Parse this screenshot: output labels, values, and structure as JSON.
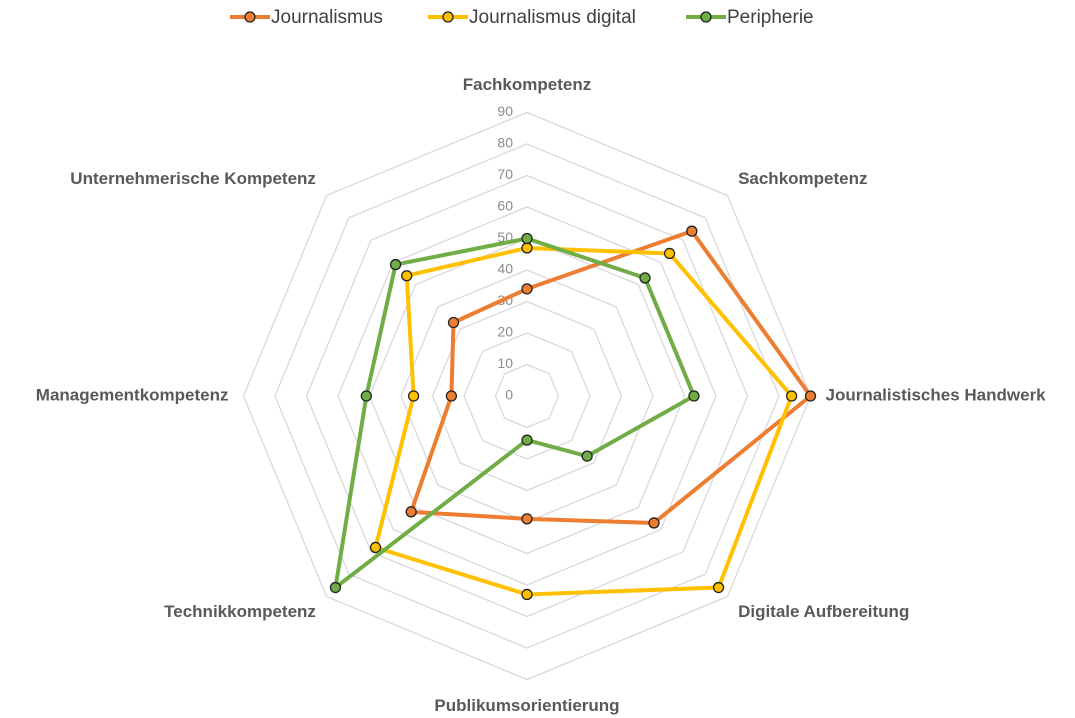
{
  "chart_data": {
    "type": "radar",
    "categories": [
      "Fachkompetenz",
      "Sachkompetenz",
      "Journalistisches Handwerk",
      "Digitale Aufbereitung",
      "Publikumsorientierung",
      "Technikkompetenz",
      "Managementkompetenz",
      "Unternehmerische Kompetenz"
    ],
    "series": [
      {
        "name": "Journalismus",
        "color": "#ED7D31",
        "values": [
          34,
          74,
          90,
          57,
          39,
          52,
          24,
          33
        ]
      },
      {
        "name": "Journalismus digital",
        "color": "#FFC000",
        "values": [
          47,
          64,
          84,
          86,
          63,
          68,
          36,
          54
        ]
      },
      {
        "name": "Peripherie",
        "color": "#70AD47",
        "values": [
          50,
          53,
          53,
          27,
          14,
          86,
          51,
          59
        ]
      }
    ],
    "ylim": [
      0,
      90
    ],
    "yticks": [
      0,
      10,
      20,
      30,
      40,
      50,
      60,
      70,
      80,
      90
    ],
    "grid": true,
    "legend": "top"
  }
}
